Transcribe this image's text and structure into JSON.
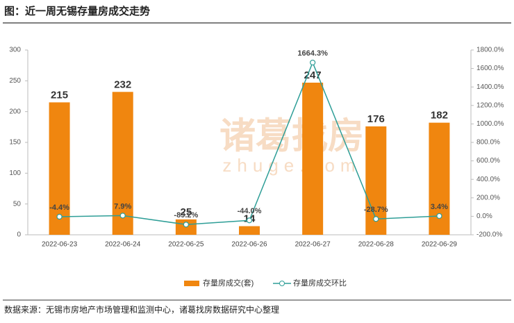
{
  "title": "图：近一周无锡存量房成交走势",
  "source": "数据来源：无锡市房地产市场管理和监测中心，诸葛找房数据研究中心整理",
  "watermark": {
    "brand": "诸葛找房",
    "site": "zhuge.com"
  },
  "chart_data": {
    "type": "bar-line",
    "categories": [
      "2022-06-23",
      "2022-06-24",
      "2022-06-25",
      "2022-06-26",
      "2022-06-27",
      "2022-06-28",
      "2022-06-29"
    ],
    "series": [
      {
        "name": "存量房成交(套)",
        "type": "bar",
        "color": "#f0860f",
        "values": [
          215,
          232,
          25,
          14,
          247,
          176,
          182
        ]
      },
      {
        "name": "存量房成交环比",
        "type": "line",
        "axis": "y2",
        "color": "#2e9e97",
        "values": [
          -4.4,
          7.9,
          -89.2,
          -44.0,
          1664.3,
          -28.7,
          3.4
        ],
        "value_labels": [
          "-4.4%",
          "7.9%",
          "-89.2%",
          "-44.0%",
          "1664.3%",
          "-28.7%",
          "3.4%"
        ]
      }
    ],
    "ylim": [
      0,
      300
    ],
    "yticks": [
      0,
      50,
      100,
      150,
      200,
      250,
      300
    ],
    "y2lim": [
      -200,
      1800
    ],
    "y2ticks": [
      {
        "value": -200,
        "label": "-200.0%"
      },
      {
        "value": 0,
        "label": "0.0%"
      },
      {
        "value": 200,
        "label": "200.0%"
      },
      {
        "value": 400,
        "label": "400.0%"
      },
      {
        "value": 600,
        "label": "600.0%"
      },
      {
        "value": 800,
        "label": "800.0%"
      },
      {
        "value": 1000,
        "label": "1000.0%"
      },
      {
        "value": 1200,
        "label": "1200.0%"
      },
      {
        "value": 1400,
        "label": "1400.0%"
      },
      {
        "value": 1600,
        "label": "1600.0%"
      },
      {
        "value": 1800,
        "label": "1800.0%"
      }
    ],
    "grid": false,
    "legend": "bottom"
  }
}
